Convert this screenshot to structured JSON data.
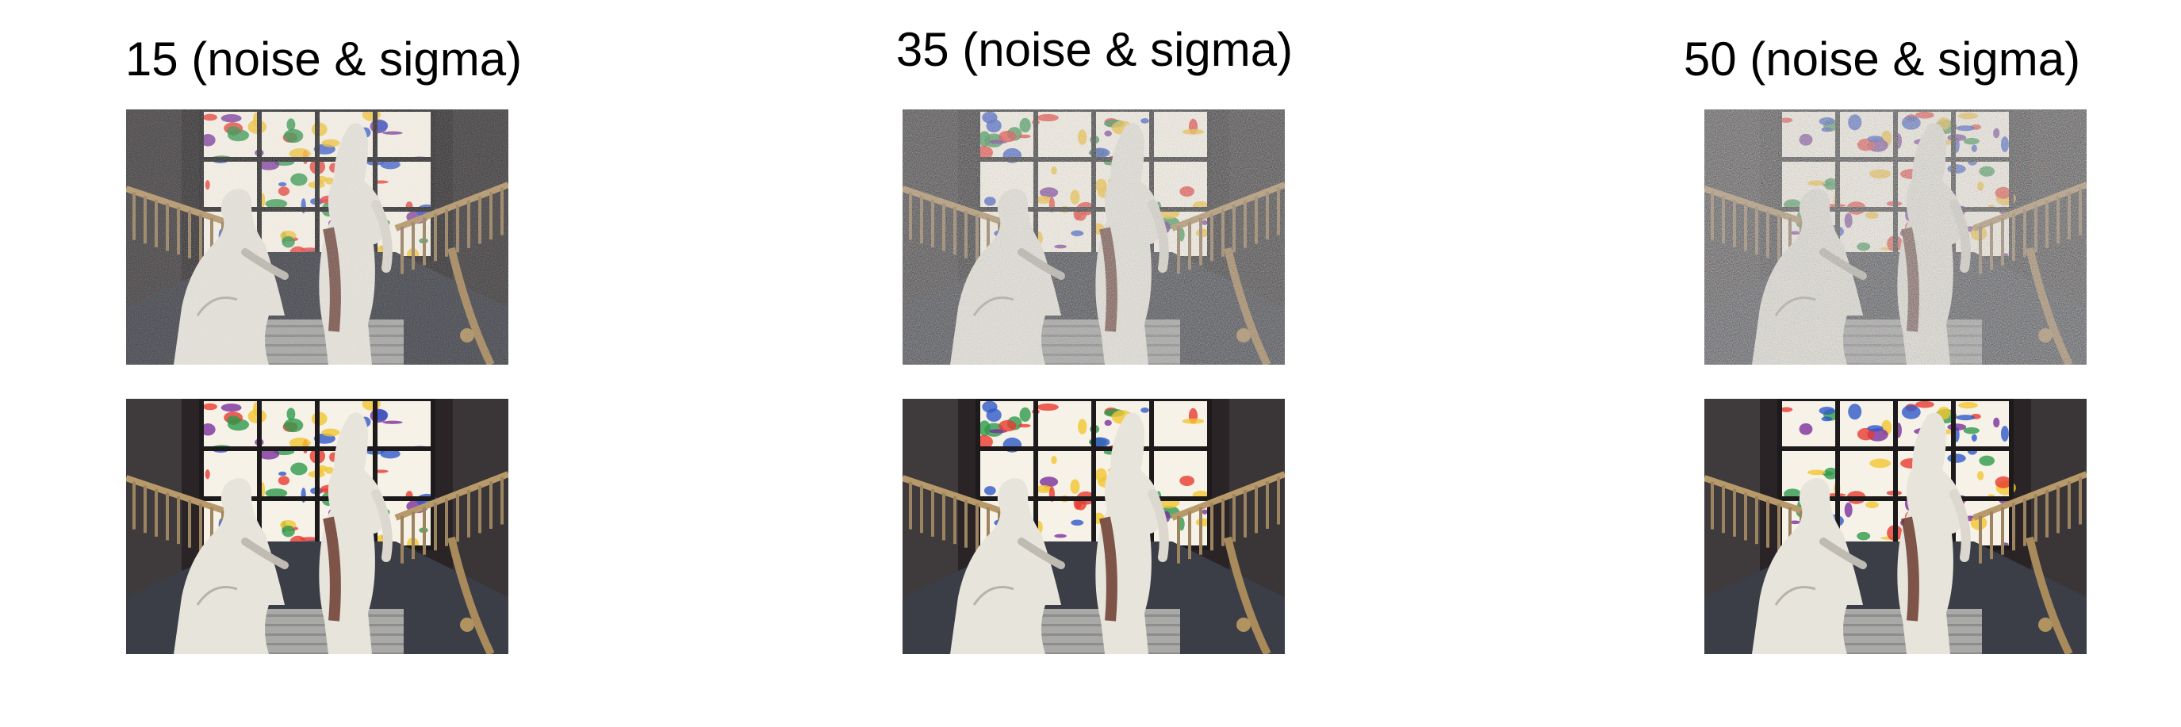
{
  "columns": [
    {
      "title": "15 (noise & sigma)",
      "noise_level": 15
    },
    {
      "title": "35 (noise & sigma)",
      "noise_level": 35
    },
    {
      "title": "50 (noise & sigma)",
      "noise_level": 50
    }
  ],
  "rows": [
    "noisy",
    "denoised"
  ],
  "scene": {
    "background_color": "#2a2427",
    "window_colors": [
      "#f7f2e8",
      "#e83a2e",
      "#2f59c9",
      "#f3c531",
      "#7a2f9c",
      "#2e9a4c"
    ],
    "statue_color": "#e7e4dc",
    "floor_color": "#3b3d47"
  }
}
